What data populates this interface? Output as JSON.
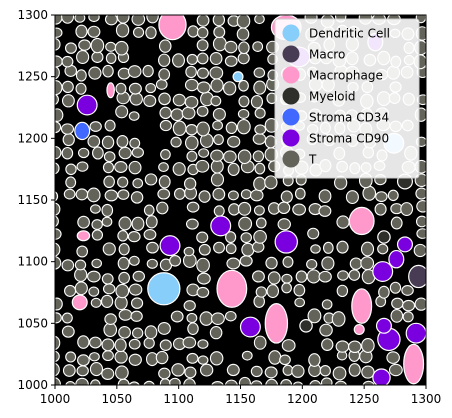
{
  "chart_data": {
    "type": "scatter",
    "subtype": "segmentation-mask",
    "title": "",
    "xlabel": "",
    "ylabel": "",
    "xlim": [
      1000,
      1300
    ],
    "ylim": [
      1000,
      1300
    ],
    "x_ticks": [
      1000,
      1050,
      1100,
      1150,
      1200,
      1250,
      1300
    ],
    "y_ticks": [
      1000,
      1050,
      1100,
      1150,
      1200,
      1250,
      1300
    ],
    "x_tick_labels": [
      "1000",
      "1050",
      "1100",
      "1150",
      "1200",
      "1250",
      "1300"
    ],
    "y_tick_labels": [
      "1000",
      "1050",
      "1100",
      "1150",
      "1200",
      "1250",
      "1300"
    ],
    "grid": false,
    "background_color": "#000000",
    "cell_outline_color": "#ffffff",
    "legend_position": "top-right",
    "legend": [
      {
        "label": "Dendritic Cell",
        "color": "#87cefa"
      },
      {
        "label": "Macro",
        "color": "#483c54"
      },
      {
        "label": "Macrophage",
        "color": "#ff99cc"
      },
      {
        "label": "Myeloid",
        "color": "#2e2e2a"
      },
      {
        "label": "Stroma CD34",
        "color": "#4169ff"
      },
      {
        "label": "Stroma CD90",
        "color": "#7a00e0"
      },
      {
        "label": "T",
        "color": "#636359"
      }
    ],
    "cells": [
      {
        "type": "Dendritic Cell",
        "x": 1088,
        "y": 1078,
        "rx": 13,
        "ry": 13
      },
      {
        "type": "Dendritic Cell",
        "x": 1274,
        "y": 1196,
        "rx": 8,
        "ry": 8
      },
      {
        "type": "Dendritic Cell",
        "x": 1148,
        "y": 1250,
        "rx": 4,
        "ry": 4
      },
      {
        "type": "Macrophage",
        "x": 1095,
        "y": 1292,
        "rx": 11,
        "ry": 12
      },
      {
        "type": "Macrophage",
        "x": 1143,
        "y": 1078,
        "rx": 12,
        "ry": 15
      },
      {
        "type": "Macrophage",
        "x": 1179,
        "y": 1050,
        "rx": 9,
        "ry": 16
      },
      {
        "type": "Macrophage",
        "x": 1248,
        "y": 1133,
        "rx": 10,
        "ry": 11
      },
      {
        "type": "Macrophage",
        "x": 1248,
        "y": 1064,
        "rx": 8,
        "ry": 14
      },
      {
        "type": "Macrophage",
        "x": 1187,
        "y": 1290,
        "rx": 12,
        "ry": 10
      },
      {
        "type": "Macrophage",
        "x": 1290,
        "y": 1017,
        "rx": 8,
        "ry": 16
      },
      {
        "type": "Macrophage",
        "x": 1045,
        "y": 1239,
        "rx": 3,
        "ry": 6
      },
      {
        "type": "Macrophage",
        "x": 1020,
        "y": 1067,
        "rx": 6,
        "ry": 6
      },
      {
        "type": "Macrophage",
        "x": 1023,
        "y": 1121,
        "rx": 5,
        "ry": 4
      },
      {
        "type": "Macrophage",
        "x": 1246,
        "y": 1045,
        "rx": 4,
        "ry": 4
      },
      {
        "type": "Macro",
        "x": 1294,
        "y": 1088,
        "rx": 8,
        "ry": 9
      },
      {
        "type": "Stroma CD34",
        "x": 1022,
        "y": 1206,
        "rx": 6,
        "ry": 7
      },
      {
        "type": "Stroma CD90",
        "x": 1026,
        "y": 1227,
        "rx": 8,
        "ry": 8
      },
      {
        "type": "Stroma CD90",
        "x": 1093,
        "y": 1113,
        "rx": 8,
        "ry": 8
      },
      {
        "type": "Stroma CD90",
        "x": 1134,
        "y": 1129,
        "rx": 8,
        "ry": 8
      },
      {
        "type": "Stroma CD90",
        "x": 1158,
        "y": 1047,
        "rx": 8,
        "ry": 8
      },
      {
        "type": "Stroma CD90",
        "x": 1187,
        "y": 1116,
        "rx": 9,
        "ry": 9
      },
      {
        "type": "Stroma CD90",
        "x": 1197,
        "y": 1266,
        "rx": 9,
        "ry": 8
      },
      {
        "type": "Stroma CD90",
        "x": 1265,
        "y": 1092,
        "rx": 8,
        "ry": 8
      },
      {
        "type": "Stroma CD90",
        "x": 1276,
        "y": 1102,
        "rx": 6,
        "ry": 7
      },
      {
        "type": "Stroma CD90",
        "x": 1283,
        "y": 1114,
        "rx": 6,
        "ry": 6
      },
      {
        "type": "Stroma CD90",
        "x": 1270,
        "y": 1037,
        "rx": 9,
        "ry": 9
      },
      {
        "type": "Stroma CD90",
        "x": 1292,
        "y": 1042,
        "rx": 8,
        "ry": 8
      },
      {
        "type": "Stroma CD90",
        "x": 1264,
        "y": 1006,
        "rx": 7,
        "ry": 7
      },
      {
        "type": "Stroma CD90",
        "x": 1266,
        "y": 1048,
        "rx": 6,
        "ry": 6
      },
      {
        "type": "Stroma CD90",
        "x": 1259,
        "y": 1278,
        "rx": 6,
        "ry": 7
      },
      {
        "type": "Myeloid",
        "x": 1283,
        "y": 1165,
        "rx": 6,
        "ry": 6
      },
      {
        "type": "Myeloid",
        "x": 1266,
        "y": 1120,
        "rx": 5,
        "ry": 5
      },
      {
        "type": "Myeloid",
        "x": 1203,
        "y": 1048,
        "rx": 5,
        "ry": 5
      }
    ],
    "t_cells": {
      "x_range": [
        1000,
        1300
      ],
      "y_range": [
        1000,
        1300
      ],
      "spacing": 11,
      "cell_size": 9
    }
  },
  "legend_items": [
    "Dendritic Cell",
    "Macro",
    "Macrophage",
    "Myeloid",
    "Stroma CD34",
    "Stroma CD90",
    "T"
  ]
}
